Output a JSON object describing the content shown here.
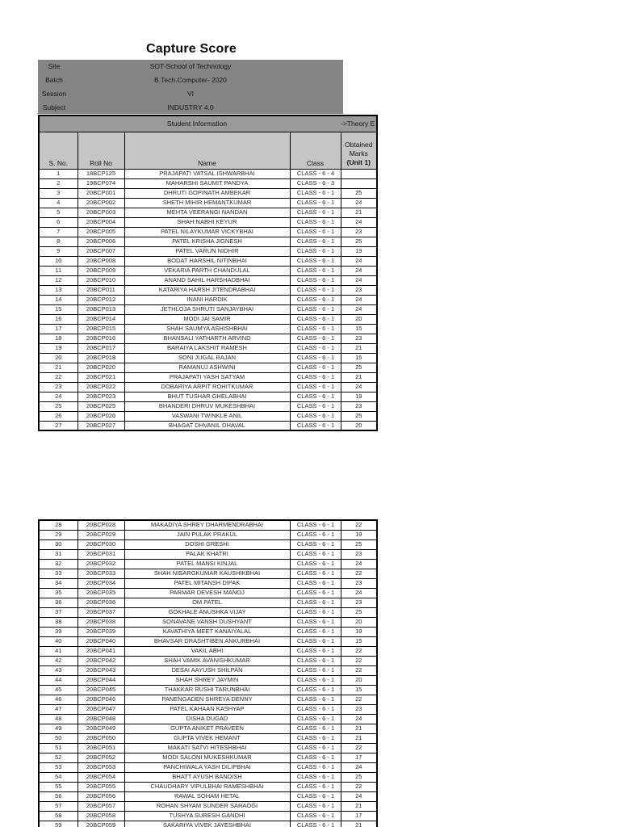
{
  "title": "Capture Score",
  "metadata": [
    {
      "label": "Site",
      "value": "SOT-School of Technology"
    },
    {
      "label": "Batch",
      "value": "B.Tech.Computer- 2020"
    },
    {
      "label": "Session",
      "value": "VI"
    },
    {
      "label": "Subject",
      "value": "INDUSTRY 4.0"
    }
  ],
  "section_header": {
    "left": "Student Information",
    "right": "->Theory E"
  },
  "columns": {
    "sno": "S. No.",
    "roll": "Roll No",
    "name": "Name",
    "class": "Class"
  },
  "marks_header": {
    "line1": "Obtained",
    "line2": "Marks",
    "line3": "(Unit 1)"
  },
  "colors": {
    "metadata_bg": "#858585",
    "band_bg": "#9a9a9a",
    "header_bg": "#c6c6c6",
    "border": "#000000",
    "page_bg": "#ffffff"
  },
  "rows_page1": [
    [
      "1",
      "18BCP125",
      "PRAJAPATI VATSAL ISHWARBHAI",
      "CLASS - 6 - 4",
      ""
    ],
    [
      "2",
      "19BCP074",
      "MAHARSHI SAUMIT PANDYA",
      "CLASS - 6 - 3",
      ""
    ],
    [
      "3",
      "20BCP001",
      "DHRUTI GOPINATH AMBEKAR",
      "CLASS - 6 - 1",
      "25"
    ],
    [
      "4",
      "20BCP002",
      "SHETH MIHIR HEMANTKUMAR",
      "CLASS - 6 - 1",
      "24"
    ],
    [
      "5",
      "20BCP003",
      "MEHTA VEERANGI NANDAN",
      "CLASS - 6 - 1",
      "21"
    ],
    [
      "6",
      "20BCP004",
      "SHAH NABHI KEYUR",
      "CLASS - 6 - 1",
      "24"
    ],
    [
      "7",
      "20BCP005",
      "PATEL NILAYKUMAR VICKYBHAI",
      "CLASS - 6 - 1",
      "23"
    ],
    [
      "8",
      "20BCP006",
      "PATEL KRISHA JIGNESH",
      "CLASS - 6 - 1",
      "25"
    ],
    [
      "9",
      "20BCP007",
      "PATEL VARUN NIDHIR",
      "CLASS - 6 - 1",
      "19"
    ],
    [
      "10",
      "20BCP008",
      "BODAT HARSHIL NITINBHAI",
      "CLASS - 6 - 1",
      "24"
    ],
    [
      "11",
      "20BCP009",
      "VEKARIA PARTH CHANDULAL",
      "CLASS - 6 - 1",
      "24"
    ],
    [
      "12",
      "20BCP010",
      "ANAND SAHIL HARSHADBHAI",
      "CLASS - 6 - 1",
      "24"
    ],
    [
      "13",
      "20BCP011",
      "KATARIYA HARSH JITENDRABHAI",
      "CLASS - 6 - 1",
      "23"
    ],
    [
      "14",
      "20BCP012",
      "INANI HARDIK",
      "CLASS - 6 - 1",
      "24"
    ],
    [
      "15",
      "20BCP013",
      "JETHLOJA SHRUTI SANJAYBHAI",
      "CLASS - 6 - 1",
      "24"
    ],
    [
      "16",
      "20BCP014",
      "MODI JAI SAMIR",
      "CLASS - 6 - 1",
      "20"
    ],
    [
      "17",
      "20BCP015",
      "SHAH SAUMYA ASHISHBHAI",
      "CLASS - 6 - 1",
      "15"
    ],
    [
      "18",
      "20BCP016",
      "BHANSALI YATHARTH ARVIND",
      "CLASS - 6 - 1",
      "23"
    ],
    [
      "19",
      "20BCP017",
      "BARAIYA LAKSHIT RAMESH",
      "CLASS - 6 - 1",
      "21"
    ],
    [
      "20",
      "20BCP018",
      "SONI JUGAL RAJAN",
      "CLASS - 6 - 1",
      "15"
    ],
    [
      "21",
      "20BCP020",
      "RAMANUJ ASHWINI",
      "CLASS - 6 - 1",
      "25"
    ],
    [
      "22",
      "20BCP021",
      "PRAJAPATI YASH SATYAM",
      "CLASS - 6 - 1",
      "21"
    ],
    [
      "23",
      "20BCP022",
      "DOBARIYA ARPIT ROHITKUMAR",
      "CLASS - 6 - 1",
      "24"
    ],
    [
      "24",
      "20BCP023",
      "BHUT TUSHAR GHELABHAI",
      "CLASS - 6 - 1",
      "19"
    ],
    [
      "25",
      "20BCP025",
      "BHANDERI DHRUV MUKESHBHAI",
      "CLASS - 6 - 1",
      "23"
    ],
    [
      "26",
      "20BCP026",
      "VASWANI TWINKLE ANIL",
      "CLASS - 6 - 1",
      "25"
    ],
    [
      "27",
      "20BCP027",
      "BHAGAT DHVANIL DHAVAL",
      "CLASS - 6 - 1",
      "20"
    ]
  ],
  "rows_page2": [
    [
      "28",
      "20BCP028",
      "MAKADIYA SHREY DHARMENDRABHAI",
      "CLASS - 6 - 1",
      "22"
    ],
    [
      "29",
      "20BCP029",
      "JAIN PULAK PRAKUL",
      "CLASS - 6 - 1",
      "19"
    ],
    [
      "30",
      "20BCP030",
      "DOSHI GRESHI",
      "CLASS - 6 - 1",
      "25"
    ],
    [
      "31",
      "20BCP031",
      "PALAK KHATRI",
      "CLASS - 6 - 1",
      "23"
    ],
    [
      "32",
      "20BCP032",
      "PATEL MANSI KINJAL",
      "CLASS - 6 - 1",
      "24"
    ],
    [
      "33",
      "20BCP033",
      "SHAH NISARGKUMAR KAUSHIKBHAI",
      "CLASS - 6 - 1",
      "22"
    ],
    [
      "34",
      "20BCP034",
      "PATEL MITANSH DIPAK",
      "CLASS - 6 - 1",
      "23"
    ],
    [
      "35",
      "20BCP035",
      "PARMAR DEVESH MANOJ",
      "CLASS - 6 - 1",
      "24"
    ],
    [
      "36",
      "20BCP036",
      "OM PATEL",
      "CLASS - 6 - 1",
      "23"
    ],
    [
      "37",
      "20BCP037",
      "GOKHALE ANUSHKA VIJAY",
      "CLASS - 6 - 1",
      "25"
    ],
    [
      "38",
      "20BCP038",
      "SONAVANE VANSH DUSHYANT",
      "CLASS - 6 - 1",
      "20"
    ],
    [
      "39",
      "20BCP039",
      "KAVATHIYA MEET KANAIYALAL",
      "CLASS - 6 - 1",
      "19"
    ],
    [
      "40",
      "20BCP040",
      "BHAVSAR DRASHTIBEN ANKURBHAI",
      "CLASS - 6 - 1",
      "15"
    ],
    [
      "41",
      "20BCP041",
      "VAKIL ABHI",
      "CLASS - 6 - 1",
      "22"
    ],
    [
      "42",
      "20BCP042",
      "SHAH VAMIK AVANISHKUMAR",
      "CLASS - 6 - 1",
      "22"
    ],
    [
      "43",
      "20BCP043",
      "DESAI AAYUSH SHILPAN",
      "CLASS - 6 - 1",
      "22"
    ],
    [
      "44",
      "20BCP044",
      "SHAH SHREY JAYMIN",
      "CLASS - 6 - 1",
      "20"
    ],
    [
      "45",
      "20BCP045",
      "THAKKAR RUSHI TARUNBHAI",
      "CLASS - 6 - 1",
      "15"
    ],
    [
      "46",
      "20BCP046",
      "PANENGADEN SHREYA DENNY",
      "CLASS - 6 - 1",
      "22"
    ],
    [
      "47",
      "20BCP047",
      "PATEL KAHAAN KASHYAP",
      "CLASS - 6 - 1",
      "23"
    ],
    [
      "48",
      "20BCP048",
      "DISHA DUGAD",
      "CLASS - 6 - 1",
      "24"
    ],
    [
      "49",
      "20BCP049",
      "GUPTA ANIKET PRAVEEN",
      "CLASS - 6 - 1",
      "21"
    ],
    [
      "50",
      "20BCP050",
      "GUPTA VIVEK HEMANT",
      "CLASS - 6 - 1",
      "21"
    ],
    [
      "51",
      "20BCP051",
      "MAKATI SATVI HITESHBHAI",
      "CLASS - 6 - 1",
      "22"
    ],
    [
      "52",
      "20BCP052",
      "MODI SALONI MUKESHKUMAR",
      "CLASS - 6 - 1",
      "17"
    ],
    [
      "53",
      "20BCP053",
      "PANCHIWALA YASH DILIPBHAI",
      "CLASS - 6 - 1",
      "24"
    ],
    [
      "54",
      "20BCP054",
      "BHATT AYUSH BANDISH",
      "CLASS - 6 - 1",
      "25"
    ],
    [
      "55",
      "20BCP055",
      "CHAUDHARY VIPULBHAI RAMESHBHAI",
      "CLASS - 6 - 1",
      "22"
    ],
    [
      "56",
      "20BCP056",
      "RAWAL SOHAM HETAL",
      "CLASS - 6 - 1",
      "24"
    ],
    [
      "57",
      "20BCP057",
      "ROHAN SHYAM SUNDER SARAOGI",
      "CLASS - 6 - 1",
      "21"
    ],
    [
      "58",
      "20BCP058",
      "TUSHYA SURESH GANDHI",
      "CLASS - 6 - 1",
      "17"
    ],
    [
      "59",
      "20BCP059",
      "SAKARIYA VIVEK JAYESHBHAI",
      "CLASS - 6 - 1",
      "21"
    ]
  ]
}
